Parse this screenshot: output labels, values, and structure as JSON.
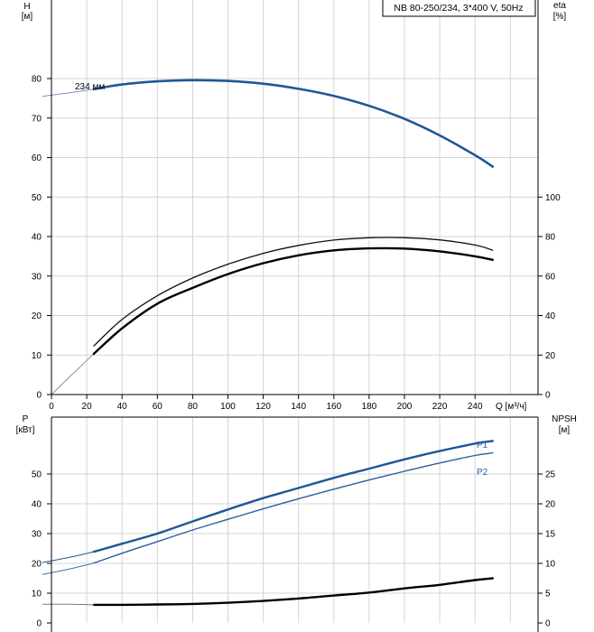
{
  "chart_data": [
    {
      "type": "line",
      "title": "NB 80-250/234, 3*400 V, 50Hz",
      "left_axis": {
        "label_line1": "H",
        "label_line2": "[м]",
        "ticks": [
          0,
          10,
          20,
          30,
          40,
          50,
          60,
          70,
          80
        ],
        "range": [
          0,
          100
        ]
      },
      "right_axis": {
        "label_line1": "eta",
        "label_line2": "[%]",
        "ticks": [
          0,
          20,
          40,
          60,
          80,
          100
        ],
        "range": [
          0,
          200
        ]
      },
      "x_axis": {
        "label": "Q [м³/ч]",
        "ticks": [
          0,
          20,
          40,
          60,
          80,
          100,
          120,
          140,
          160,
          180,
          200,
          220,
          240
        ],
        "range": [
          0,
          276
        ]
      },
      "grid": true,
      "annotation": "234 мм",
      "series": [
        {
          "axis": "left",
          "style": "head-thin",
          "x": [
            -5,
            10,
            24
          ],
          "y": [
            75.5,
            76.4,
            77.3
          ]
        },
        {
          "axis": "left",
          "style": "head",
          "x": [
            24,
            40,
            60,
            80,
            100,
            120,
            140,
            160,
            180,
            200,
            220,
            240,
            250
          ],
          "y": [
            77.3,
            78.5,
            79.3,
            79.6,
            79.4,
            78.7,
            77.4,
            75.6,
            73.1,
            69.8,
            65.6,
            60.6,
            57.7
          ]
        },
        {
          "axis": "right",
          "style": "eta-thin",
          "x": [
            0,
            10,
            24
          ],
          "y": [
            0,
            8.7,
            20.6
          ]
        },
        {
          "axis": "right",
          "style": "eta-upper",
          "x": [
            24,
            40,
            60,
            80,
            100,
            120,
            140,
            160,
            180,
            200,
            220,
            240,
            250
          ],
          "y": [
            24.6,
            38,
            50,
            59,
            66,
            71.5,
            75.5,
            78.2,
            79.4,
            79.4,
            78.3,
            75.7,
            73.1
          ]
        },
        {
          "axis": "right",
          "style": "eta-lower",
          "x": [
            24,
            40,
            60,
            80,
            100,
            120,
            140,
            160,
            180,
            200,
            220,
            240,
            250
          ],
          "y": [
            20.6,
            33.5,
            46,
            54,
            61,
            66.5,
            70.5,
            73,
            74,
            73.9,
            72.5,
            70,
            68.2
          ]
        }
      ]
    },
    {
      "type": "line",
      "left_axis": {
        "label_line1": "P",
        "label_line2": "[кВт]",
        "ticks": [
          0,
          10,
          20,
          30,
          40,
          50
        ],
        "range": [
          0,
          60
        ]
      },
      "right_axis": {
        "label_line1": "NPSH",
        "label_line2": "[м]",
        "ticks": [
          0,
          5,
          10,
          15,
          20,
          25
        ],
        "range": [
          0,
          30
        ]
      },
      "grid": true,
      "series": [
        {
          "axis": "left",
          "name": "P1",
          "style": "p1",
          "x": [
            24,
            40,
            60,
            80,
            100,
            120,
            140,
            160,
            180,
            200,
            220,
            240,
            250
          ],
          "y": [
            23.9,
            26.6,
            30,
            34.1,
            38.1,
            41.9,
            45.3,
            48.7,
            51.8,
            54.9,
            57.7,
            60.2,
            61.1
          ]
        },
        {
          "axis": "left",
          "style": "p1-thin",
          "x": [
            -5,
            10,
            24
          ],
          "y": [
            20.3,
            22,
            23.9
          ]
        },
        {
          "axis": "left",
          "name": "P2",
          "style": "p2",
          "x": [
            24,
            40,
            60,
            80,
            100,
            120,
            140,
            160,
            180,
            200,
            220,
            240,
            250
          ],
          "y": [
            20.1,
            23.4,
            27.3,
            31.2,
            34.8,
            38.3,
            41.7,
            44.9,
            48,
            50.9,
            53.7,
            56.2,
            57.1
          ]
        },
        {
          "axis": "left",
          "style": "p2-thin",
          "x": [
            -5,
            10,
            24
          ],
          "y": [
            16.3,
            18.1,
            20.1
          ]
        },
        {
          "axis": "right",
          "style": "npsh",
          "x": [
            24,
            40,
            60,
            80,
            100,
            120,
            140,
            160,
            180,
            200,
            220,
            240,
            250
          ],
          "y": [
            3.05,
            3.05,
            3.1,
            3.2,
            3.4,
            3.7,
            4.1,
            4.6,
            5.1,
            5.8,
            6.4,
            7.2,
            7.5
          ]
        },
        {
          "axis": "right",
          "style": "npsh-thin",
          "x": [
            -5,
            10,
            24
          ],
          "y": [
            3.15,
            3.15,
            3.05
          ]
        }
      ]
    }
  ]
}
